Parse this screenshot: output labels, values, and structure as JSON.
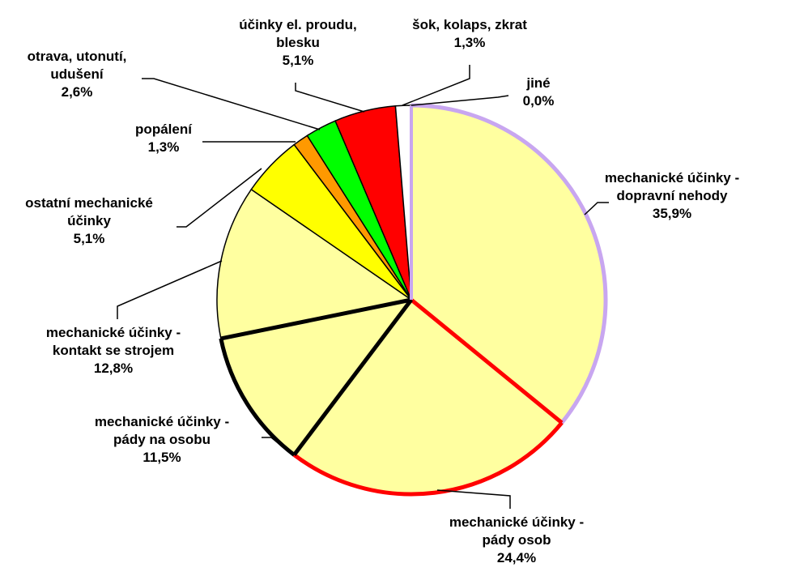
{
  "chart_data": {
    "type": "pie",
    "title": "",
    "slices": [
      {
        "label_lines": [
          "mechanické účinky -",
          "dopravní nehody"
        ],
        "value_label": "35,9%",
        "value": 35.9,
        "fill": "#FFFFA0",
        "stroke": "#C8A6F0"
      },
      {
        "label_lines": [
          "mechanické účinky -",
          "pády osob"
        ],
        "value_label": "24,4%",
        "value": 24.4,
        "fill": "#FFFFA0",
        "stroke": "#FF0000"
      },
      {
        "label_lines": [
          "mechanické účinky -",
          "pády na osobu"
        ],
        "value_label": "11,5%",
        "value": 11.5,
        "fill": "#FFFFA0",
        "stroke": "#000000"
      },
      {
        "label_lines": [
          "mechanické účinky -",
          "kontakt se strojem"
        ],
        "value_label": "12,8%",
        "value": 12.8,
        "fill": "#FFFFA0",
        "stroke": "#000000"
      },
      {
        "label_lines": [
          "ostatní mechanické",
          "účinky"
        ],
        "value_label": "5,1%",
        "value": 5.1,
        "fill": "#FFFF00",
        "stroke": "#000000"
      },
      {
        "label_lines": [
          "popálení"
        ],
        "value_label": "1,3%",
        "value": 1.3,
        "fill": "#FF9900",
        "stroke": "#000000"
      },
      {
        "label_lines": [
          "otrava, utonutí,",
          "udušení"
        ],
        "value_label": "2,6%",
        "value": 2.6,
        "fill": "#00FF00",
        "stroke": "#000000"
      },
      {
        "label_lines": [
          "účinky el. proudu,",
          "blesku"
        ],
        "value_label": "5,1%",
        "value": 5.1,
        "fill": "#FF0000",
        "stroke": "#000000"
      },
      {
        "label_lines": [
          "šok, kolaps, zkrat"
        ],
        "value_label": "1,3%",
        "value": 1.3,
        "fill": "#FFFFFF",
        "stroke": "#000000"
      },
      {
        "label_lines": [
          "jiné"
        ],
        "value_label": "0,0%",
        "value": 0.0,
        "fill": "#FFFFFF",
        "stroke": "#000000"
      }
    ],
    "start": "12 o'clock",
    "direction": "clockwise",
    "legend": "none"
  }
}
